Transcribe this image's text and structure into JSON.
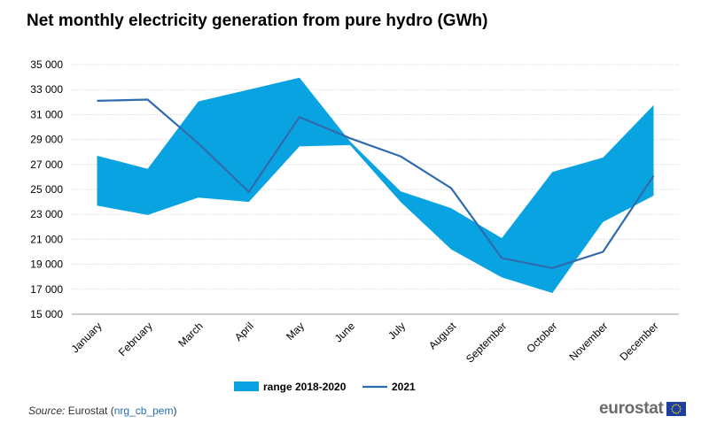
{
  "title": "Net monthly electricity generation from pure hydro (GWh)",
  "source": {
    "label": "Source:",
    "publisher": "Eurostat",
    "code": "nrg_cb_pem"
  },
  "logo": {
    "text": "eurostat",
    "flag_icon": "eu-flag-icon"
  },
  "colors": {
    "range_fill": "#0aa3e2",
    "line": "#2e6cad",
    "grid": "#d9d9d9",
    "axis": "#999999"
  },
  "chart_data": {
    "type": "area",
    "title": "Net monthly electricity generation from pure hydro (GWh)",
    "xlabel": "",
    "ylabel": "",
    "ylim": [
      15000,
      35000
    ],
    "yticks": [
      15000,
      17000,
      19000,
      21000,
      23000,
      25000,
      27000,
      29000,
      31000,
      33000,
      35000
    ],
    "ytick_labels": [
      "15 000",
      "17 000",
      "19 000",
      "21 000",
      "23 000",
      "25 000",
      "27 000",
      "29 000",
      "31 000",
      "33 000",
      "35 000"
    ],
    "categories": [
      "January",
      "February",
      "March",
      "April",
      "May",
      "June",
      "July",
      "August",
      "September",
      "October",
      "November",
      "December"
    ],
    "grid": true,
    "legend_position": "bottom-center",
    "series": [
      {
        "name": "range 2018-2020",
        "kind": "range",
        "low": [
          23700,
          22950,
          24350,
          24000,
          28450,
          28550,
          24000,
          20200,
          17950,
          16700,
          22400,
          24500
        ],
        "high": [
          27700,
          26650,
          32050,
          33000,
          33950,
          28850,
          24850,
          23500,
          21100,
          26400,
          27550,
          31750
        ]
      },
      {
        "name": "2021",
        "kind": "line",
        "values": [
          32100,
          32200,
          28700,
          24800,
          30800,
          29100,
          27650,
          25100,
          19500,
          18700,
          20000,
          26100
        ]
      }
    ]
  }
}
